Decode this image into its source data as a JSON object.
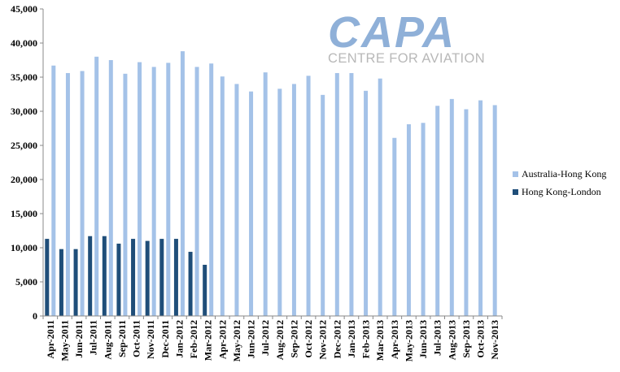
{
  "logo": {
    "main": "CAPA",
    "sub": "CENTRE FOR AVIATION"
  },
  "colors": {
    "australia_hk": "#a4c2e8",
    "hk_london": "#1f4e79",
    "logo_main": "#8fb0d8",
    "logo_sub": "#b8b8b8",
    "axis": "#888888"
  },
  "chart_data": {
    "type": "bar",
    "title": "",
    "xlabel": "",
    "ylabel": "",
    "ylim": [
      0,
      45000
    ],
    "yticks": [
      0,
      5000,
      10000,
      15000,
      20000,
      25000,
      30000,
      35000,
      40000,
      45000
    ],
    "ytick_labels": [
      "0",
      "5,000",
      "10,000",
      "15,000",
      "20,000",
      "25,000",
      "30,000",
      "35,000",
      "40,000",
      "45,000"
    ],
    "grid": false,
    "legend_position": "right",
    "categories": [
      "Apr-2011",
      "May-2011",
      "Jun-2011",
      "Jul-2011",
      "Aug-2011",
      "Sep-2011",
      "Oct-2011",
      "Nov-2011",
      "Dec-2011",
      "Jan-2012",
      "Feb-2012",
      "Mar-2012",
      "Apr-2012",
      "May-2012",
      "Jun-2012",
      "Jul-2012",
      "Aug-2012",
      "Sep-2012",
      "Oct-2012",
      "Nov-2012",
      "Dec-2012",
      "Jan-2013",
      "Feb-2013",
      "Mar-2013",
      "Apr-2013",
      "May-2013",
      "Jun-2013",
      "Jul-2013",
      "Aug-2013",
      "Sep-2013",
      "Oct-2013",
      "Nov-2013"
    ],
    "series": [
      {
        "name": "Australia-Hong Kong",
        "color": "#a4c2e8",
        "values": [
          36700,
          35600,
          35900,
          38000,
          37500,
          35500,
          37200,
          36500,
          37100,
          38800,
          36500,
          37000,
          35100,
          34000,
          32900,
          35700,
          33300,
          34000,
          35200,
          32400,
          35600,
          35600,
          33000,
          34800,
          26100,
          28100,
          28300,
          30800,
          31800,
          30300,
          31600,
          30900
        ]
      },
      {
        "name": "Hong Kong-London",
        "color": "#1f4e79",
        "values": [
          11300,
          9800,
          9800,
          11700,
          11700,
          10600,
          11300,
          11000,
          11300,
          11300,
          9400,
          7500,
          null,
          null,
          null,
          null,
          null,
          null,
          null,
          null,
          null,
          null,
          null,
          null,
          null,
          null,
          null,
          null,
          null,
          null,
          null,
          null
        ]
      }
    ]
  }
}
